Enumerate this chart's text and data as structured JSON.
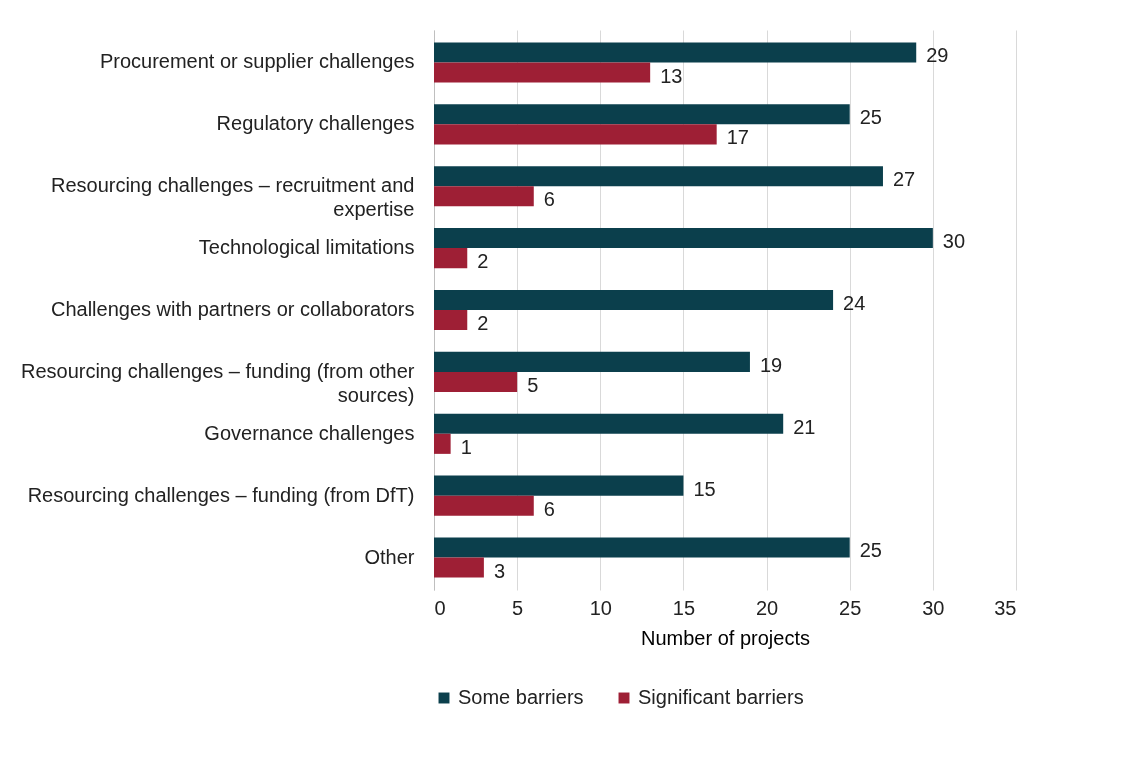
{
  "chart_data": {
    "type": "bar",
    "orientation": "horizontal",
    "xlabel": "Number of projects",
    "categories": [
      "Procurement or supplier challenges",
      "Regulatory challenges",
      "Resourcing challenges – recruitment and expertise",
      "Technological limitations",
      "Challenges with partners or collaborators",
      "Resourcing challenges – funding (from other sources)",
      "Governance challenges",
      "Resourcing challenges – funding (from DfT)",
      "Other"
    ],
    "series": [
      {
        "name": "Some barriers",
        "color": "#0b3f4c",
        "values": [
          29,
          25,
          27,
          30,
          24,
          19,
          21,
          15,
          25
        ]
      },
      {
        "name": "Significant barriers",
        "color": "#9e1f35",
        "values": [
          13,
          17,
          6,
          2,
          2,
          5,
          1,
          6,
          3
        ]
      }
    ],
    "xlim": [
      0,
      35
    ],
    "xticks": [
      0,
      5,
      10,
      15,
      20,
      25,
      30,
      35
    ],
    "grid": "x",
    "legend": "bottom",
    "data_labels": true
  }
}
